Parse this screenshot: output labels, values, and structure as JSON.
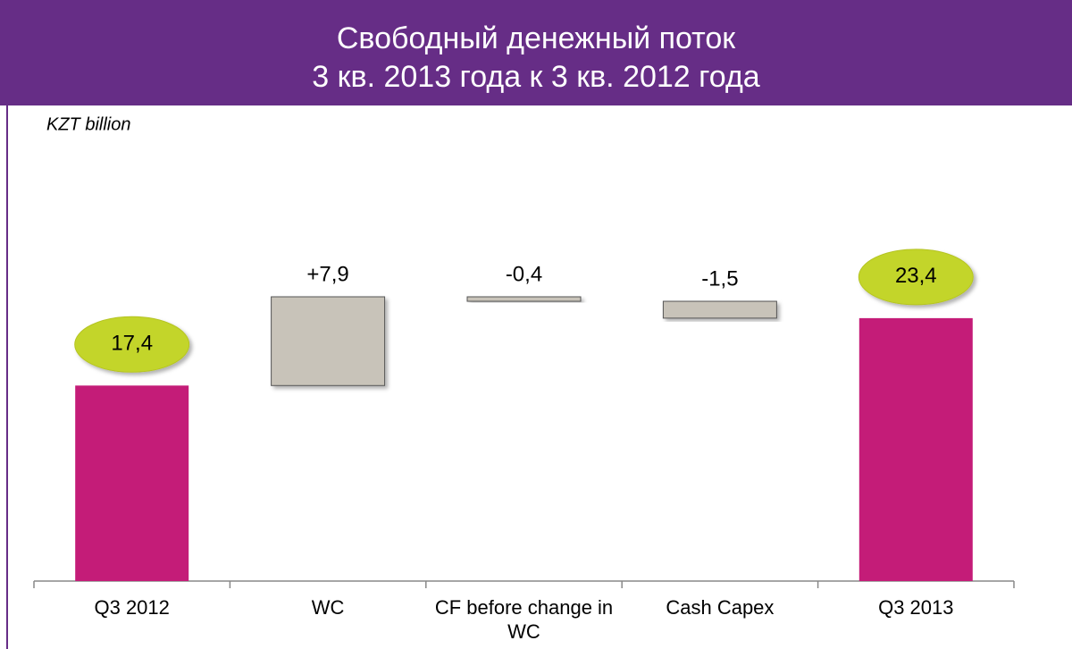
{
  "chart_data": {
    "type": "waterfall",
    "title": [
      "Свободный денежный поток",
      "3 кв. 2013 года к 3 кв. 2012 года"
    ],
    "unit_label": "KZT billion",
    "categories": [
      "Q3 2012",
      "WC",
      "CF before change in WC",
      "Cash Capex",
      "Q3 2013"
    ],
    "values": [
      17.4,
      7.9,
      -0.4,
      -1.5,
      23.4
    ],
    "value_labels": [
      "17,4",
      "+7,9",
      "-0,4",
      "-1,5",
      "23,4"
    ],
    "is_total": [
      true,
      false,
      false,
      false,
      true
    ],
    "total_color": "#c41c78",
    "step_color": "#c8c3b9",
    "badge_color": "#c3d52a"
  }
}
